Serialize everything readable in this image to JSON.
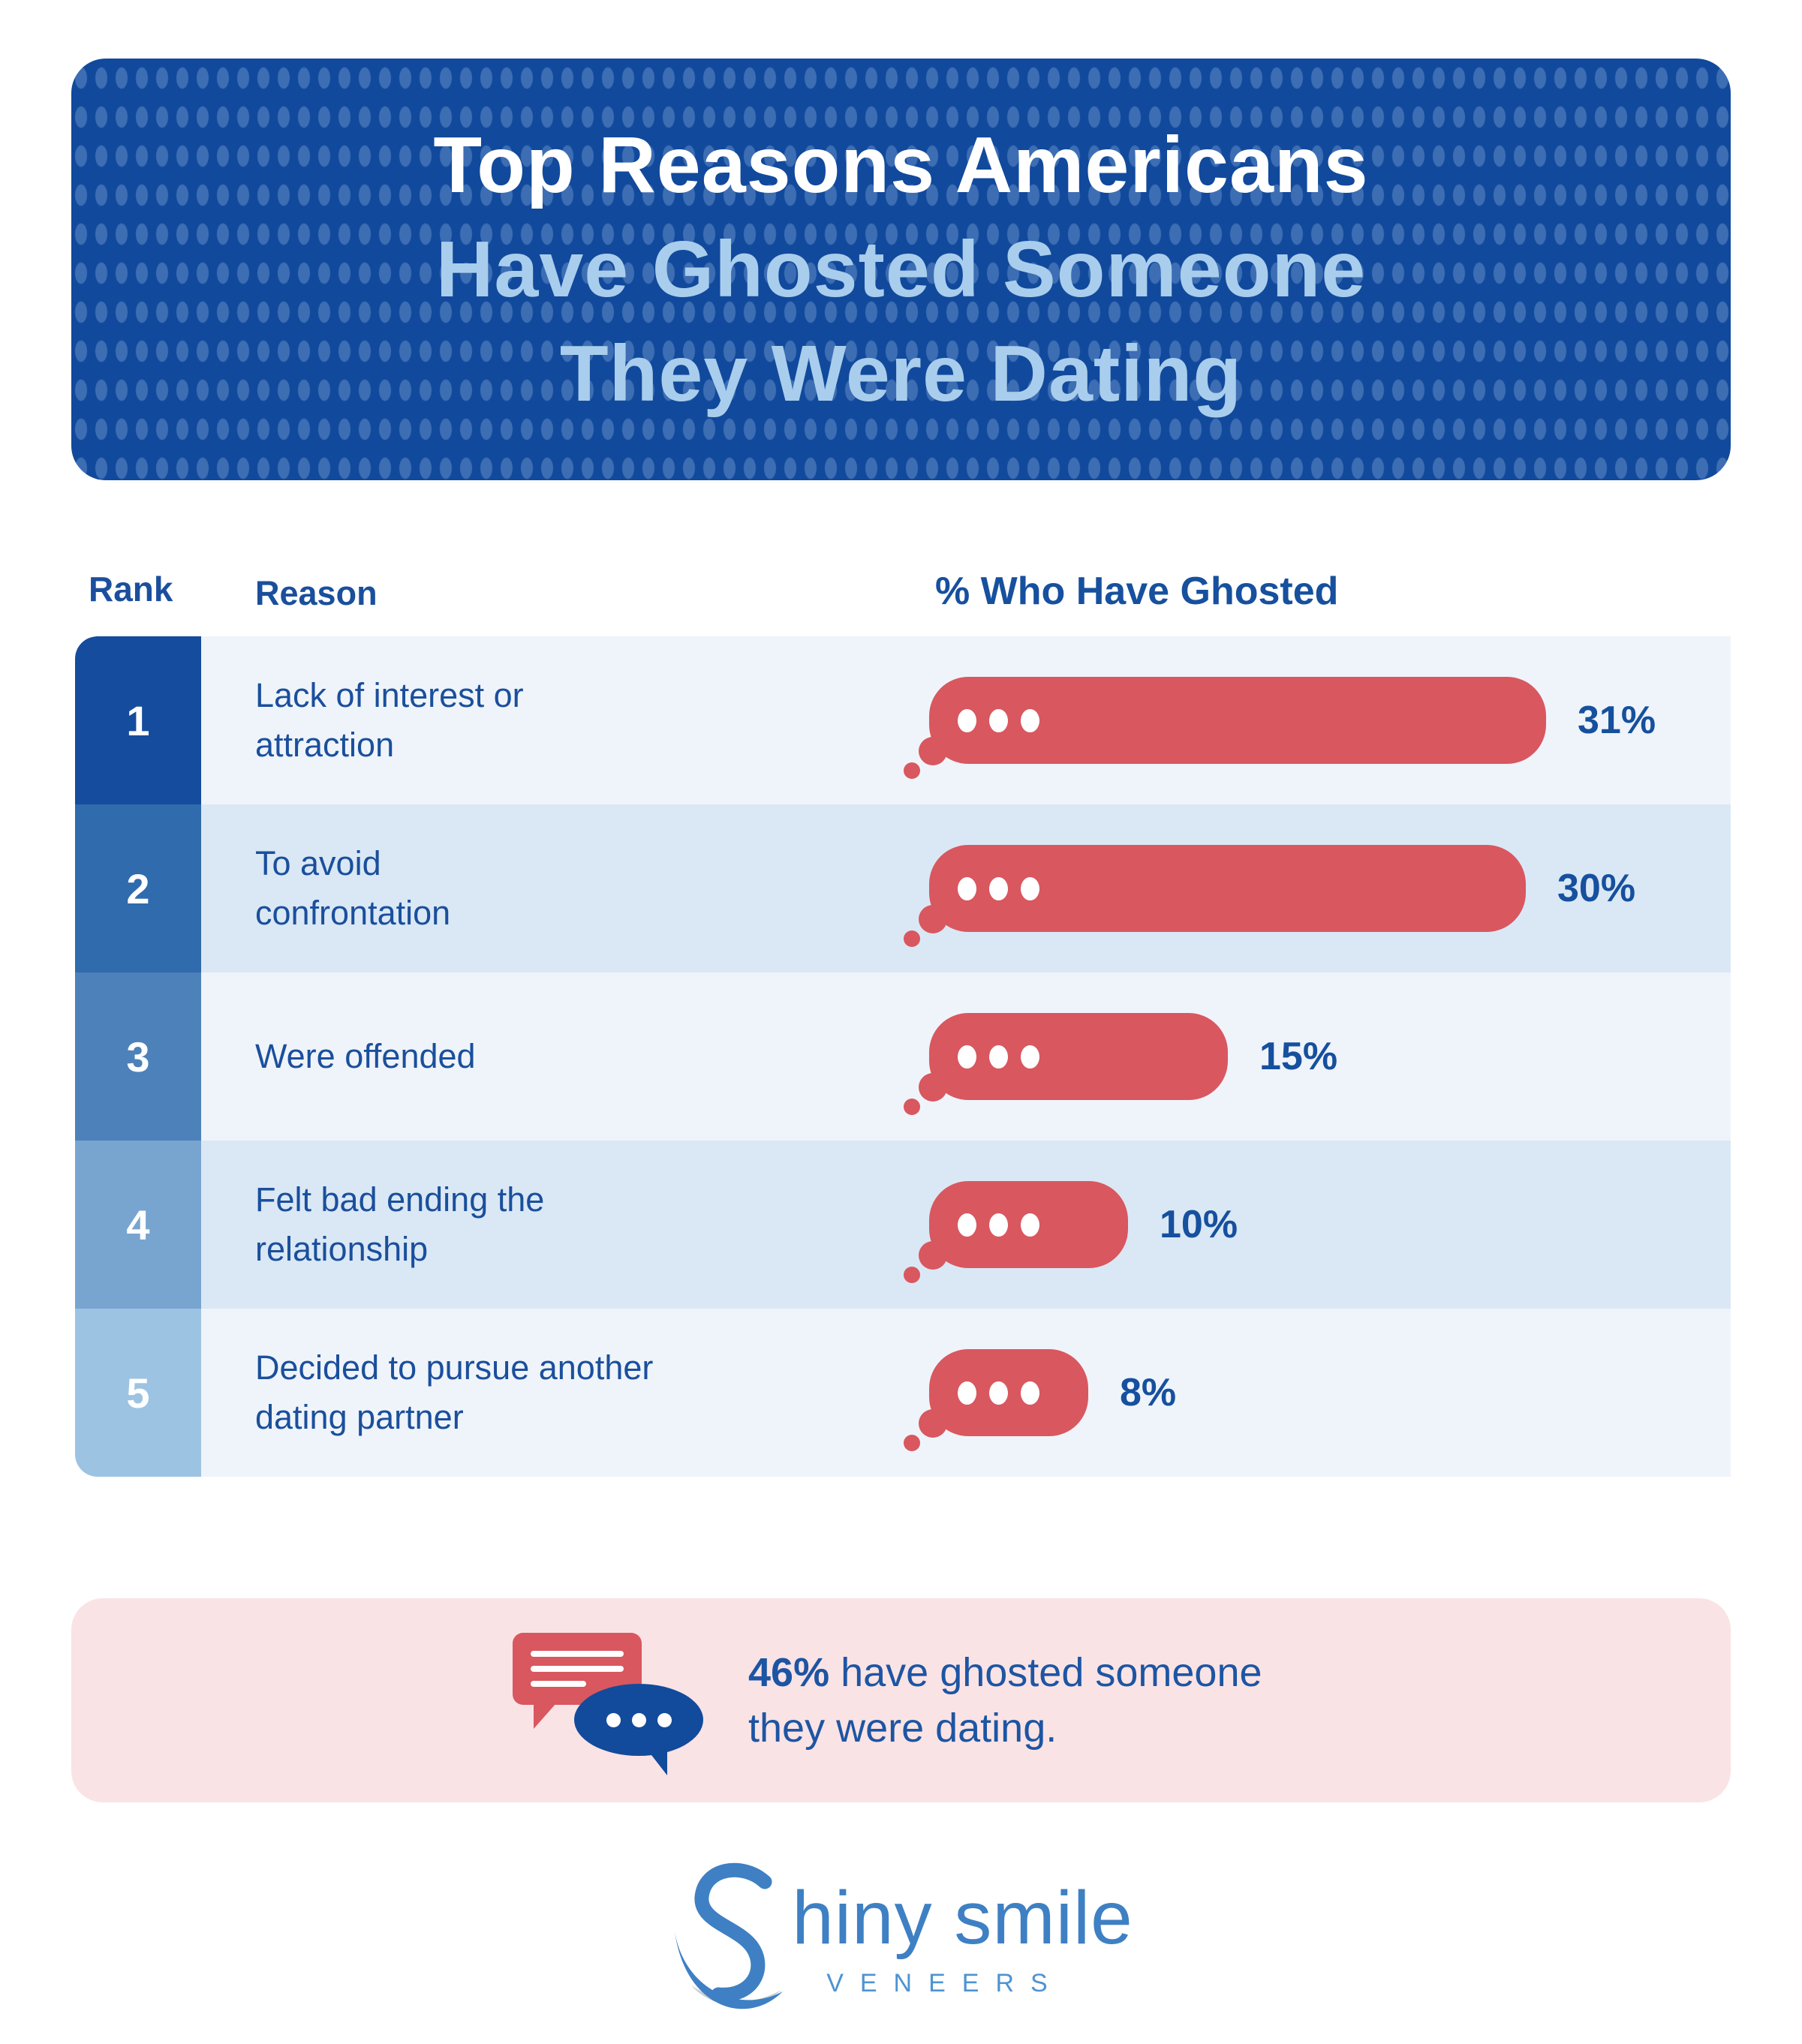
{
  "header": {
    "title_line1": "Top Reasons Americans",
    "title_line2": "Have Ghosted Someone",
    "title_line3": "They Were Dating"
  },
  "table": {
    "columns": {
      "rank": "Rank",
      "reason": "Reason",
      "percent": "% Who Have Ghosted"
    },
    "rows": [
      {
        "rank": "1",
        "reason_lines": [
          "Lack of interest or",
          "attraction"
        ],
        "percent": 31,
        "percent_label": "31%"
      },
      {
        "rank": "2",
        "reason_lines": [
          "To avoid",
          "confrontation"
        ],
        "percent": 30,
        "percent_label": "30%"
      },
      {
        "rank": "3",
        "reason_lines": [
          "Were offended"
        ],
        "percent": 15,
        "percent_label": "15%"
      },
      {
        "rank": "4",
        "reason_lines": [
          "Felt bad ending the",
          "relationship"
        ],
        "percent": 10,
        "percent_label": "10%"
      },
      {
        "rank": "5",
        "reason_lines": [
          "Decided to pursue another",
          "dating partner"
        ],
        "percent": 8,
        "percent_label": "8%"
      }
    ]
  },
  "callout": {
    "stat": "46%",
    "line1_rest": " have ghosted someone",
    "line2": "they were dating."
  },
  "logo": {
    "name_top": "hiny smile",
    "name_bottom": "VENEERS"
  },
  "colors": {
    "header_bg": "#11499C",
    "header_dot": "#33619F",
    "title_white": "#FFFFFF",
    "title_light_blue": "#A9CDEC",
    "column_header_text": "#1B4F9E",
    "rank_cell_colors": [
      "#164C9D",
      "#2F6BAD",
      "#4D81BA",
      "#78A4D0",
      "#9DC3E3"
    ],
    "row_backgrounds": [
      "#EFF4FA",
      "#DAE8F5"
    ],
    "reason_text": "#1A4F9C",
    "bubble_red": "#D9575F",
    "percent_text": "#16509E",
    "callout_bg": "#FAE3E5",
    "callout_text": "#1D55A3",
    "chat_icon_blue": "#124B9B",
    "logo_blue": "#3E80C3",
    "logo_veneers_blue": "#4E93D3"
  },
  "chart_data": {
    "type": "bar",
    "orientation": "horizontal",
    "title": "Top Reasons Americans Have Ghosted Someone They Were Dating",
    "xlabel": "% Who Have Ghosted",
    "categories": [
      "Lack of interest or attraction",
      "To avoid confrontation",
      "Were offended",
      "Felt bad ending the relationship",
      "Decided to pursue another dating partner"
    ],
    "ranks": [
      1,
      2,
      3,
      4,
      5
    ],
    "values": [
      31,
      30,
      15,
      10,
      8
    ],
    "value_labels": [
      "31%",
      "30%",
      "15%",
      "10%",
      "8%"
    ],
    "xlim": [
      0,
      35
    ],
    "grid": false,
    "legend": false,
    "annotation": "46% have ghosted someone they were dating."
  }
}
